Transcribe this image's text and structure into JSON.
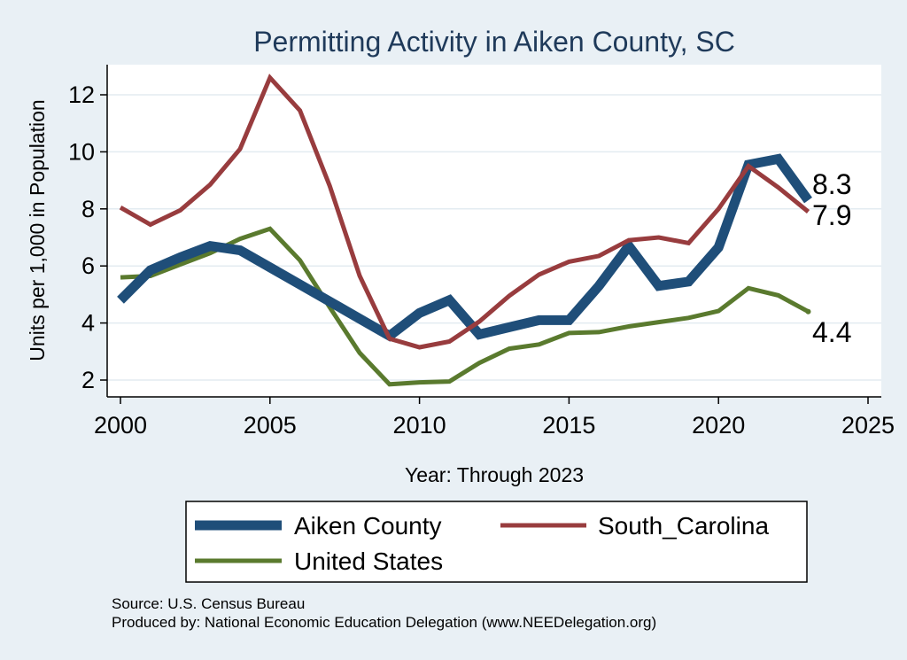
{
  "chart_data": {
    "type": "line",
    "title": "Permitting Activity in Aiken County, SC",
    "xlabel": "Year: Through 2023",
    "ylabel": "Units per 1,000 in Population",
    "xlim": [
      2000,
      2025
    ],
    "ylim": [
      1.5,
      13.2
    ],
    "x_ticks": [
      2000,
      2005,
      2010,
      2015,
      2020,
      2025
    ],
    "y_ticks": [
      2,
      4,
      6,
      8,
      10,
      12
    ],
    "x": [
      2000,
      2001,
      2002,
      2003,
      2004,
      2005,
      2006,
      2007,
      2008,
      2009,
      2010,
      2011,
      2012,
      2013,
      2014,
      2015,
      2016,
      2017,
      2018,
      2019,
      2020,
      2021,
      2022,
      2023
    ],
    "series": [
      {
        "name": "Aiken County",
        "color": "#1f4e79",
        "values": [
          4.8,
          5.85,
          6.3,
          6.7,
          6.55,
          5.95,
          5.35,
          4.75,
          4.15,
          3.55,
          4.35,
          4.8,
          3.6,
          3.85,
          4.1,
          4.1,
          5.3,
          6.7,
          5.3,
          5.45,
          6.65,
          9.55,
          9.75,
          8.3
        ]
      },
      {
        "name": "South_Carolina",
        "color": "#983c3e",
        "values": [
          8.05,
          7.45,
          7.95,
          8.85,
          10.1,
          12.6,
          11.45,
          8.8,
          5.65,
          3.45,
          3.15,
          3.35,
          4.05,
          4.95,
          5.7,
          6.15,
          6.35,
          6.9,
          7.0,
          6.8,
          8.0,
          9.5,
          8.75,
          7.9
        ]
      },
      {
        "name": "United States",
        "color": "#5a7a2e",
        "values": [
          5.6,
          5.65,
          6.05,
          6.45,
          6.95,
          7.3,
          6.2,
          4.55,
          2.95,
          1.85,
          1.92,
          1.95,
          2.6,
          3.1,
          3.25,
          3.65,
          3.68,
          3.88,
          4.03,
          4.18,
          4.42,
          5.22,
          4.97,
          4.4
        ]
      }
    ],
    "end_labels": [
      "8.3",
      "7.9",
      "4.4"
    ],
    "legend": [
      "Aiken County",
      "South_Carolina",
      "United States"
    ]
  },
  "source_line": "Source: U.S. Census Bureau",
  "produced_line": "Produced by: National Economic Education Delegation (www.NEEDelegation.org)"
}
